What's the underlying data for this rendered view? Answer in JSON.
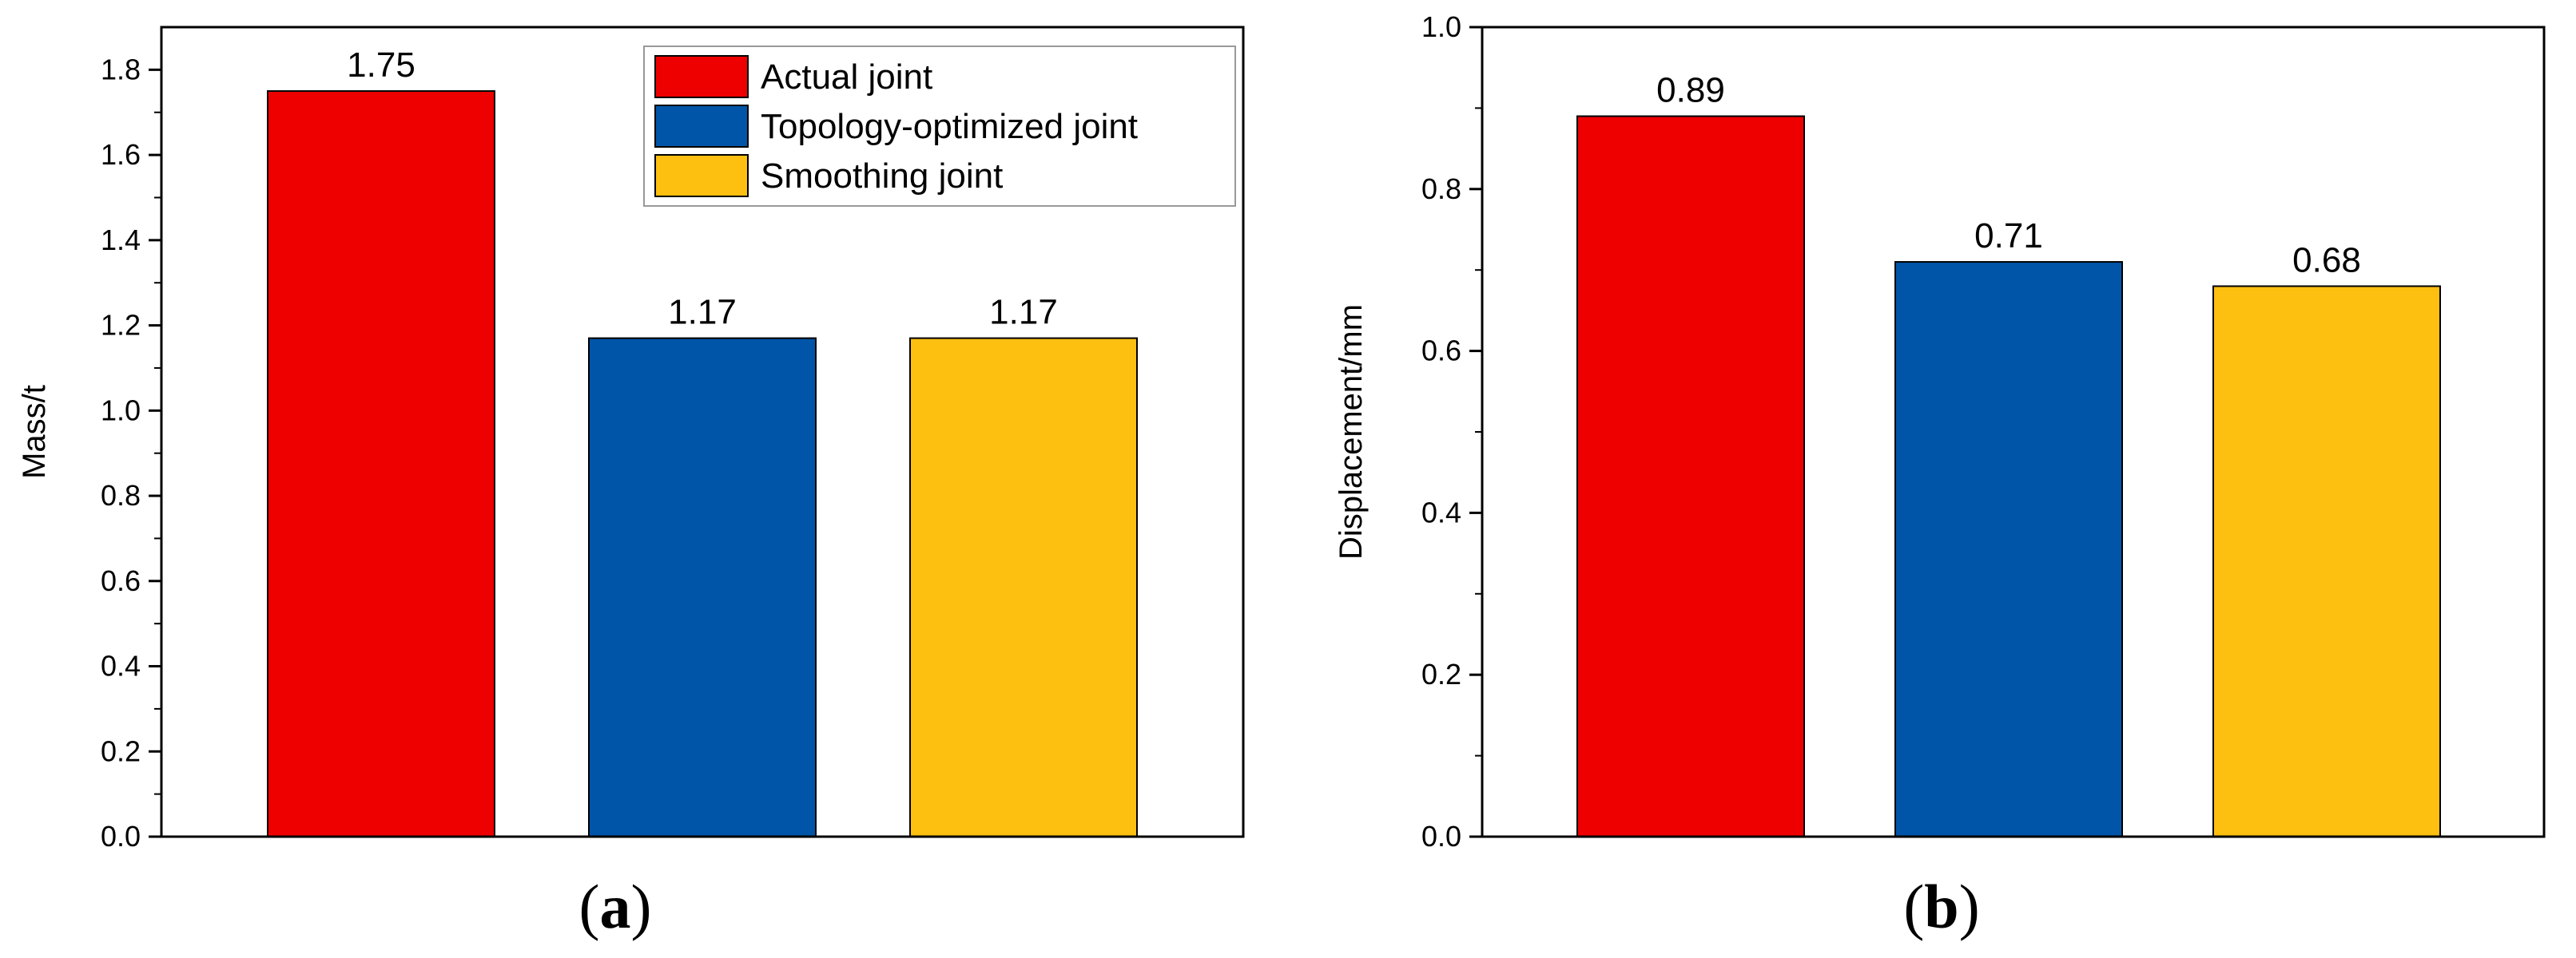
{
  "chart_data": [
    {
      "type": "bar",
      "panel_label": "a",
      "categories": [
        "Actual joint",
        "Topology-optimized joint",
        "Smoothing joint"
      ],
      "values": [
        1.75,
        1.17,
        1.17
      ],
      "data_labels": [
        "1.75",
        "1.17",
        "1.17"
      ],
      "colors": [
        "#ee0000",
        "#0055a8",
        "#fdbf10"
      ],
      "ylabel": "Mass/t",
      "ylim": [
        0,
        1.9
      ],
      "yticks": [
        0.0,
        0.2,
        0.4,
        0.6,
        0.8,
        1.0,
        1.2,
        1.4,
        1.6,
        1.8
      ],
      "ytick_labels": [
        "0.0",
        "0.2",
        "0.4",
        "0.6",
        "0.8",
        "1.0",
        "1.2",
        "1.4",
        "1.6",
        "1.8"
      ],
      "legend": {
        "placement": "top-right",
        "entries": [
          {
            "label": "Actual joint",
            "color": "#ee0000"
          },
          {
            "label": "Topology-optimized joint",
            "color": "#0055a8"
          },
          {
            "label": "Smoothing joint",
            "color": "#fdbf10"
          }
        ]
      },
      "grid": false
    },
    {
      "type": "bar",
      "panel_label": "b",
      "categories": [
        "Actual joint",
        "Topology-optimized joint",
        "Smoothing joint"
      ],
      "values": [
        0.89,
        0.71,
        0.68
      ],
      "data_labels": [
        "0.89",
        "0.71",
        "0.68"
      ],
      "colors": [
        "#ee0000",
        "#0055a8",
        "#fdbf10"
      ],
      "ylabel": "Displacement/mm",
      "ylim": [
        0,
        1.0
      ],
      "yticks": [
        0.0,
        0.2,
        0.4,
        0.6,
        0.8,
        1.0
      ],
      "ytick_labels": [
        "0.0",
        "0.2",
        "0.4",
        "0.6",
        "0.8",
        "1.0"
      ],
      "grid": false
    }
  ]
}
